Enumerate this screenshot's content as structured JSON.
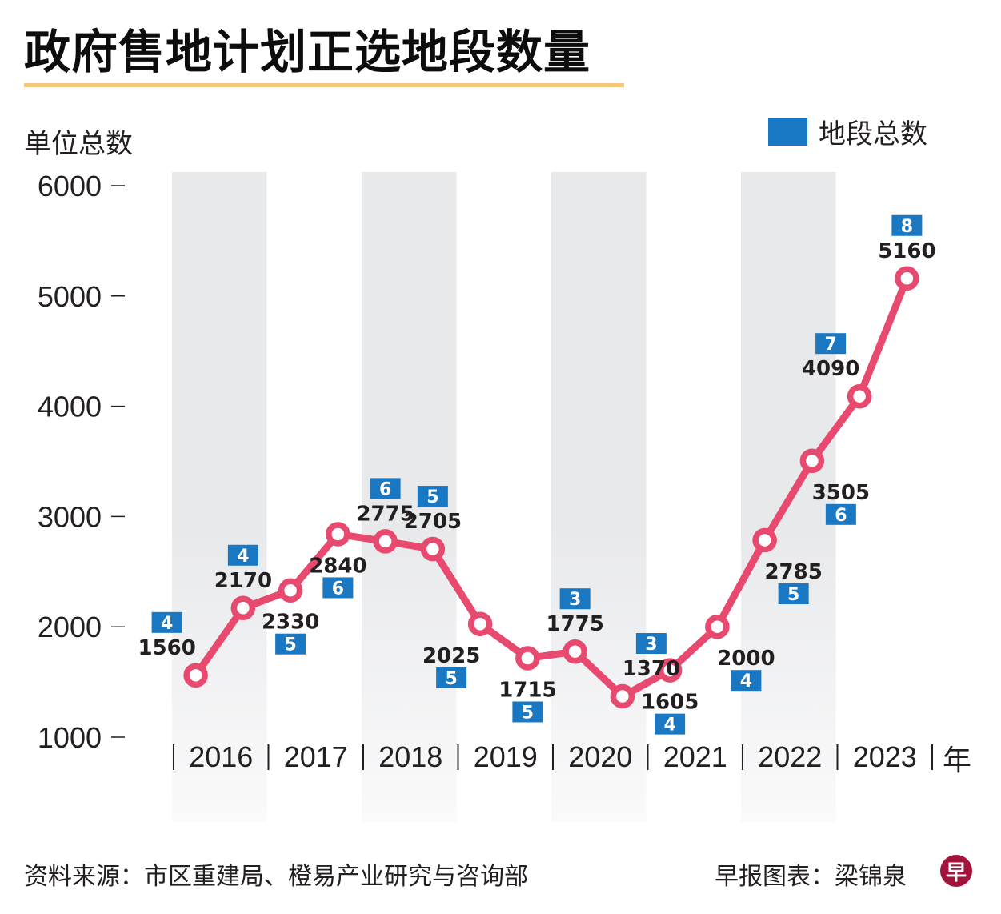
{
  "title": "政府售地计划正选地段数量",
  "footer": {
    "source": "资料来源：市区重建局、橙易产业研究与咨询部",
    "credit": "早报图表：梁锦泉",
    "logo_char": "早"
  },
  "colors": {
    "line": "#e8496e",
    "badge": "#1a78c2",
    "band": "#e8e9eb",
    "title_rule": "#f5c77e",
    "logo": "#a3133c"
  },
  "chart_data": {
    "type": "line",
    "title": "政府售地计划正选地段数量",
    "xlabel": "年",
    "ylabel": "单位总数",
    "ylim": [
      1000,
      6000
    ],
    "yticks": [
      1000,
      2000,
      3000,
      4000,
      5000,
      6000
    ],
    "categories": [
      "2016",
      "2017",
      "2018",
      "2019",
      "2020",
      "2021",
      "2022",
      "2023"
    ],
    "periods_per_year": 2,
    "legend": {
      "label": "地段总数",
      "placement": "top-right"
    },
    "series": [
      {
        "name": "单位总数",
        "values": [
          1560,
          2170,
          2330,
          2840,
          2775,
          2705,
          2025,
          1715,
          1775,
          1370,
          1605,
          2000,
          2785,
          3505,
          4090,
          5160
        ]
      },
      {
        "name": "地段总数",
        "values": [
          4,
          4,
          5,
          6,
          6,
          5,
          5,
          5,
          3,
          3,
          4,
          4,
          5,
          6,
          7,
          8
        ]
      }
    ],
    "label_positions": [
      "above-left",
      "above",
      "below",
      "below",
      "above",
      "above",
      "below-left",
      "below",
      "above",
      "above-right",
      "below",
      "below-right",
      "below-right",
      "below-right",
      "above-left",
      "above"
    ]
  }
}
